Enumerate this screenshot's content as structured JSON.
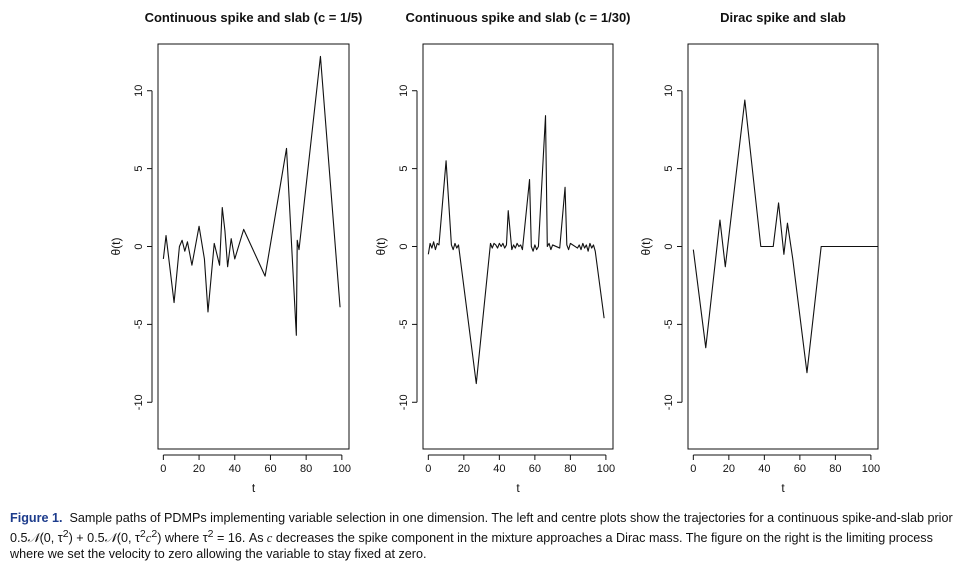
{
  "chart_data": [
    {
      "type": "line",
      "title": "Continuous spike and slab (c = 1/5)",
      "xlabel": "t",
      "ylabel": "θ(t)",
      "xlim": [
        -3,
        104
      ],
      "ylim": [
        -13,
        13
      ],
      "xticks": [
        "0",
        "20",
        "40",
        "60",
        "80",
        "100"
      ],
      "yticks": [
        "-10",
        "-5",
        "0",
        "5",
        "10"
      ],
      "series": [
        {
          "x": [
            0,
            1.5,
            6,
            9,
            10.5,
            12,
            13.5,
            16,
            20,
            23,
            25,
            28.5,
            31.5,
            33,
            34.5,
            36,
            38,
            40,
            45,
            57,
            69,
            74.5,
            75,
            76,
            88,
            99
          ],
          "y": [
            -0.8,
            0.7,
            -3.6,
            0,
            0.4,
            -0.3,
            0.3,
            -1.2,
            1.3,
            -0.8,
            -4.2,
            0.2,
            -1.2,
            2.5,
            1,
            -1.3,
            0.5,
            -0.8,
            1.1,
            -1.9,
            6.3,
            -5.7,
            0.4,
            -0.2,
            12.2,
            -3.9
          ]
        }
      ]
    },
    {
      "type": "line",
      "title": "Continuous spike and slab (c = 1/30)",
      "xlabel": "t",
      "ylabel": "θ(t)",
      "xlim": [
        -3,
        104
      ],
      "ylim": [
        -13,
        13
      ],
      "xticks": [
        "0",
        "20",
        "40",
        "60",
        "80",
        "100"
      ],
      "yticks": [
        "-10",
        "-5",
        "0",
        "5",
        "10"
      ],
      "series": [
        {
          "x": [
            0,
            1,
            2,
            3,
            4,
            5,
            6,
            10,
            13,
            14,
            15,
            16,
            17,
            27,
            35,
            36,
            37,
            38,
            39,
            40,
            41,
            42,
            43,
            44,
            45,
            47,
            48,
            49,
            50,
            51,
            52,
            53,
            57,
            58,
            59,
            60,
            61,
            62,
            66,
            67,
            68,
            69,
            70,
            74,
            77,
            78,
            79,
            80,
            84,
            85,
            86,
            87,
            88,
            89,
            90,
            91,
            92,
            93,
            94,
            99
          ],
          "y": [
            -0.5,
            0.2,
            -0.1,
            0.3,
            -0.2,
            0.2,
            0.1,
            5.5,
            0.1,
            -0.2,
            0.2,
            -0.1,
            0.1,
            -8.8,
            0.2,
            -0.1,
            0.2,
            0.1,
            -0.1,
            0.2,
            0,
            0.2,
            -0.1,
            0.1,
            2.3,
            -0.2,
            0.1,
            -0.1,
            0.2,
            0,
            0.1,
            -0.2,
            4.3,
            0,
            -0.3,
            0.1,
            -0.2,
            0,
            8.4,
            0,
            0.2,
            -0.2,
            0.1,
            -0.1,
            3.8,
            0.1,
            -0.2,
            0.2,
            -0.1,
            0.1,
            -0.2,
            0.2,
            -0.1,
            0.1,
            -0.3,
            0.2,
            -0.1,
            0.1,
            -0.3,
            -4.6
          ]
        }
      ]
    },
    {
      "type": "line",
      "title": "Dirac spike and slab",
      "xlabel": "t",
      "ylabel": "θ(t)",
      "xlim": [
        -3,
        104
      ],
      "ylim": [
        -13,
        13
      ],
      "xticks": [
        "0",
        "20",
        "40",
        "60",
        "80",
        "100"
      ],
      "yticks": [
        "-10",
        "-5",
        "0",
        "5",
        "10"
      ],
      "series": [
        {
          "x": [
            0,
            7,
            15,
            18,
            29,
            38,
            45,
            48,
            51,
            53,
            56,
            64,
            72,
            104
          ],
          "y": [
            -0.2,
            -6.5,
            1.7,
            -1.3,
            9.4,
            0,
            0,
            2.8,
            -0.5,
            1.5,
            -0.8,
            -8.1,
            0,
            0
          ]
        }
      ]
    }
  ],
  "caption": {
    "label": "Figure 1.",
    "line1": "Sample paths of PDMPs implementing variable selection in one dimension. The left and centre plots show the trajectories for a continuous spike-and-slab prior",
    "line2a": "0.5",
    "line2b": "(0, τ",
    "line2c": ") + 0.5",
    "line2d": "(0, τ",
    "line2e": "c",
    "line2f": ") where τ",
    "line2g": " = 16. As",
    "line2h": " c",
    "line2i": " decreases the spike component in the mixture approaches a Dirac mass. The figure on the right is the limiting process",
    "normal_symbol": "𝒩",
    "sup2": "2",
    "line3": "where we set the velocity to zero allowing the variable to stay fixed at zero."
  }
}
